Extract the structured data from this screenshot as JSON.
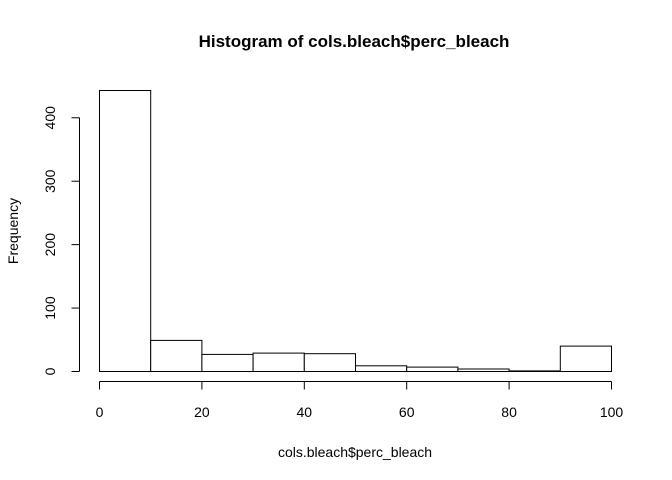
{
  "chart_data": {
    "type": "bar",
    "title": "Histogram of cols.bleach$perc_bleach",
    "xlabel": "cols.bleach$perc_bleach",
    "ylabel": "Frequency",
    "bins": [
      {
        "start": 0,
        "end": 10,
        "count": 443
      },
      {
        "start": 10,
        "end": 20,
        "count": 49
      },
      {
        "start": 20,
        "end": 30,
        "count": 27
      },
      {
        "start": 30,
        "end": 40,
        "count": 29
      },
      {
        "start": 40,
        "end": 50,
        "count": 28
      },
      {
        "start": 50,
        "end": 60,
        "count": 9
      },
      {
        "start": 60,
        "end": 70,
        "count": 7
      },
      {
        "start": 70,
        "end": 80,
        "count": 4
      },
      {
        "start": 80,
        "end": 90,
        "count": 1
      },
      {
        "start": 90,
        "end": 100,
        "count": 40
      }
    ],
    "xlim": [
      0,
      100
    ],
    "ylim": [
      0,
      443
    ],
    "x_ticks": [
      "0",
      "20",
      "40",
      "60",
      "80",
      "100"
    ],
    "y_ticks": [
      "0",
      "100",
      "200",
      "300",
      "400"
    ],
    "grid": false,
    "legend": "none",
    "bar_fill": "#ffffff",
    "bar_stroke": "#000000"
  }
}
